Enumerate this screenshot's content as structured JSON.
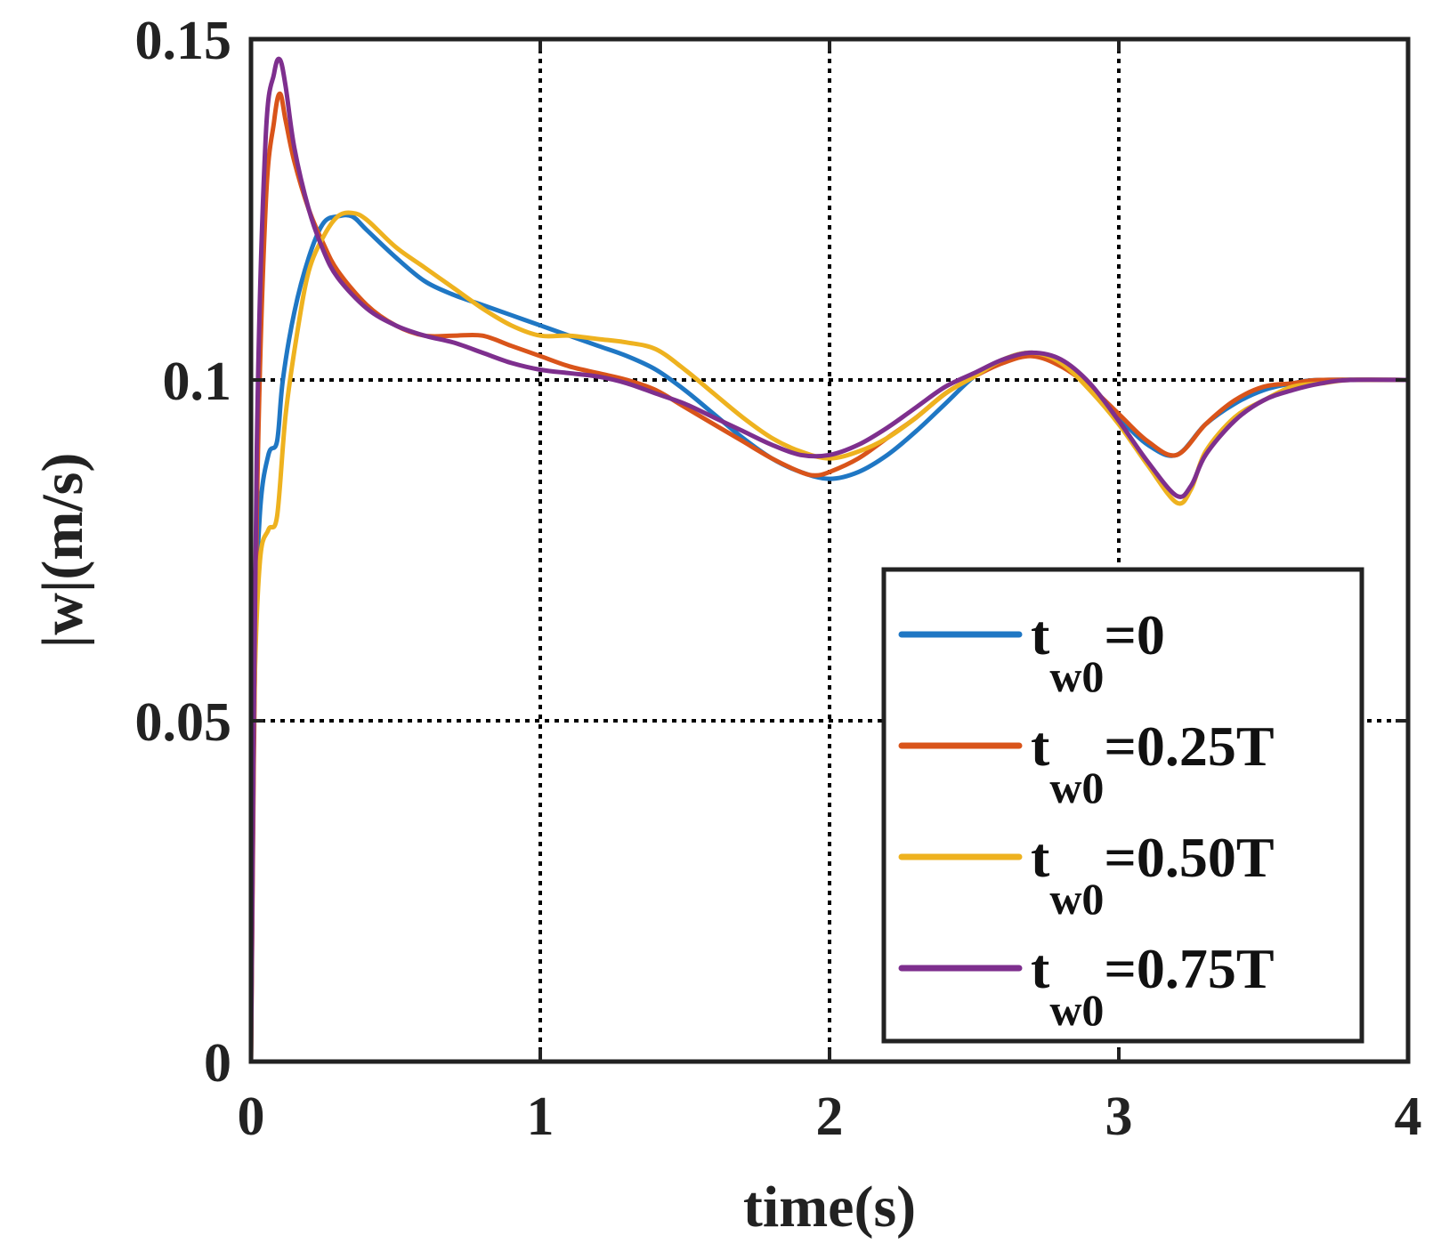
{
  "chart_data": {
    "type": "line",
    "title": "",
    "xlabel": "time(s)",
    "ylabel": "|w|(m/s)",
    "xlim": [
      0,
      4
    ],
    "ylim": [
      0,
      0.15
    ],
    "xticks": [
      0,
      1,
      2,
      3,
      4
    ],
    "xtick_labels": [
      "0",
      "1",
      "2",
      "3",
      "4"
    ],
    "yticks": [
      0,
      0.05,
      0.1,
      0.15
    ],
    "ytick_labels": [
      "0",
      "0.05",
      "0.1",
      "0.15"
    ],
    "grid": true,
    "legend_position": "bottom-right",
    "series": [
      {
        "name": "t_w0=0",
        "legend_main": "t",
        "legend_sub": "w0",
        "legend_suffix": "=0",
        "color": "#1f77c4",
        "points": [
          [
            0,
            0
          ],
          [
            0.01,
            0.055
          ],
          [
            0.03,
            0.08
          ],
          [
            0.06,
            0.089
          ],
          [
            0.09,
            0.091
          ],
          [
            0.11,
            0.1
          ],
          [
            0.15,
            0.11
          ],
          [
            0.2,
            0.118
          ],
          [
            0.25,
            0.123
          ],
          [
            0.3,
            0.124
          ],
          [
            0.35,
            0.124
          ],
          [
            0.4,
            0.122
          ],
          [
            0.5,
            0.118
          ],
          [
            0.6,
            0.1145
          ],
          [
            0.7,
            0.1125
          ],
          [
            0.8,
            0.111
          ],
          [
            0.9,
            0.1095
          ],
          [
            1.0,
            0.108
          ],
          [
            1.1,
            0.1065
          ],
          [
            1.2,
            0.105
          ],
          [
            1.3,
            0.1035
          ],
          [
            1.4,
            0.1015
          ],
          [
            1.5,
            0.0985
          ],
          [
            1.6,
            0.095
          ],
          [
            1.7,
            0.0915
          ],
          [
            1.8,
            0.0885
          ],
          [
            1.9,
            0.0865
          ],
          [
            2.0,
            0.0855
          ],
          [
            2.1,
            0.0865
          ],
          [
            2.2,
            0.089
          ],
          [
            2.3,
            0.0925
          ],
          [
            2.4,
            0.0965
          ],
          [
            2.5,
            0.1005
          ],
          [
            2.6,
            0.103
          ],
          [
            2.7,
            0.104
          ],
          [
            2.8,
            0.1025
          ],
          [
            2.9,
            0.099
          ],
          [
            3.0,
            0.0945
          ],
          [
            3.1,
            0.0905
          ],
          [
            3.2,
            0.089
          ],
          [
            3.3,
            0.0935
          ],
          [
            3.4,
            0.0965
          ],
          [
            3.5,
            0.0985
          ],
          [
            3.6,
            0.0995
          ],
          [
            3.7,
            0.1
          ],
          [
            4.0,
            0.1
          ]
        ]
      },
      {
        "name": "t_w0=0.25T",
        "legend_main": "t",
        "legend_sub": "w0",
        "legend_suffix": "=0.25T",
        "color": "#d9541a",
        "points": [
          [
            0,
            0
          ],
          [
            0.02,
            0.08
          ],
          [
            0.05,
            0.125
          ],
          [
            0.08,
            0.138
          ],
          [
            0.1,
            0.142
          ],
          [
            0.12,
            0.138
          ],
          [
            0.15,
            0.132
          ],
          [
            0.2,
            0.125
          ],
          [
            0.25,
            0.12
          ],
          [
            0.3,
            0.116
          ],
          [
            0.4,
            0.111
          ],
          [
            0.5,
            0.108
          ],
          [
            0.6,
            0.1065
          ],
          [
            0.7,
            0.1065
          ],
          [
            0.8,
            0.1065
          ],
          [
            0.9,
            0.105
          ],
          [
            1.0,
            0.1035
          ],
          [
            1.1,
            0.102
          ],
          [
            1.2,
            0.101
          ],
          [
            1.3,
            0.1
          ],
          [
            1.4,
            0.0985
          ],
          [
            1.5,
            0.096
          ],
          [
            1.6,
            0.0935
          ],
          [
            1.7,
            0.091
          ],
          [
            1.8,
            0.0885
          ],
          [
            1.9,
            0.0865
          ],
          [
            1.95,
            0.086
          ],
          [
            2.0,
            0.0865
          ],
          [
            2.1,
            0.0885
          ],
          [
            2.2,
            0.0915
          ],
          [
            2.3,
            0.0945
          ],
          [
            2.4,
            0.098
          ],
          [
            2.5,
            0.1005
          ],
          [
            2.6,
            0.1025
          ],
          [
            2.7,
            0.1035
          ],
          [
            2.8,
            0.102
          ],
          [
            2.9,
            0.099
          ],
          [
            3.0,
            0.095
          ],
          [
            3.1,
            0.091
          ],
          [
            3.2,
            0.089
          ],
          [
            3.3,
            0.0935
          ],
          [
            3.4,
            0.097
          ],
          [
            3.5,
            0.099
          ],
          [
            3.6,
            0.0995
          ],
          [
            3.7,
            0.1
          ],
          [
            4.0,
            0.1
          ]
        ]
      },
      {
        "name": "t_w0=0.50T",
        "legend_main": "t",
        "legend_sub": "w0",
        "legend_suffix": "=0.50T",
        "color": "#eeb21f",
        "points": [
          [
            0,
            0
          ],
          [
            0.01,
            0.05
          ],
          [
            0.03,
            0.073
          ],
          [
            0.06,
            0.078
          ],
          [
            0.09,
            0.08
          ],
          [
            0.12,
            0.095
          ],
          [
            0.16,
            0.107
          ],
          [
            0.2,
            0.116
          ],
          [
            0.25,
            0.121
          ],
          [
            0.3,
            0.124
          ],
          [
            0.35,
            0.1245
          ],
          [
            0.4,
            0.1235
          ],
          [
            0.5,
            0.1195
          ],
          [
            0.6,
            0.1165
          ],
          [
            0.7,
            0.1135
          ],
          [
            0.8,
            0.1105
          ],
          [
            0.9,
            0.108
          ],
          [
            1.0,
            0.1065
          ],
          [
            1.1,
            0.1065
          ],
          [
            1.2,
            0.106
          ],
          [
            1.3,
            0.1055
          ],
          [
            1.4,
            0.1045
          ],
          [
            1.5,
            0.1015
          ],
          [
            1.6,
            0.098
          ],
          [
            1.7,
            0.0945
          ],
          [
            1.8,
            0.0915
          ],
          [
            1.9,
            0.0895
          ],
          [
            2.0,
            0.0885
          ],
          [
            2.1,
            0.0895
          ],
          [
            2.2,
            0.0915
          ],
          [
            2.3,
            0.0945
          ],
          [
            2.4,
            0.098
          ],
          [
            2.5,
            0.1005
          ],
          [
            2.6,
            0.103
          ],
          [
            2.7,
            0.104
          ],
          [
            2.8,
            0.1025
          ],
          [
            2.9,
            0.0985
          ],
          [
            3.0,
            0.0935
          ],
          [
            3.1,
            0.0875
          ],
          [
            3.2,
            0.082
          ],
          [
            3.25,
            0.084
          ],
          [
            3.3,
            0.0895
          ],
          [
            3.4,
            0.0945
          ],
          [
            3.5,
            0.097
          ],
          [
            3.6,
            0.099
          ],
          [
            3.7,
            0.0995
          ],
          [
            3.8,
            0.1
          ],
          [
            4.0,
            0.1
          ]
        ]
      },
      {
        "name": "t_w0=0.75T",
        "legend_main": "t",
        "legend_sub": "w0",
        "legend_suffix": "=0.75T",
        "color": "#7e2f8e",
        "points": [
          [
            0,
            0
          ],
          [
            0.02,
            0.09
          ],
          [
            0.05,
            0.135
          ],
          [
            0.08,
            0.145
          ],
          [
            0.1,
            0.147
          ],
          [
            0.12,
            0.143
          ],
          [
            0.15,
            0.134
          ],
          [
            0.2,
            0.125
          ],
          [
            0.25,
            0.119
          ],
          [
            0.3,
            0.115
          ],
          [
            0.4,
            0.1105
          ],
          [
            0.5,
            0.108
          ],
          [
            0.6,
            0.1065
          ],
          [
            0.7,
            0.1055
          ],
          [
            0.8,
            0.104
          ],
          [
            0.9,
            0.1025
          ],
          [
            1.0,
            0.1015
          ],
          [
            1.1,
            0.101
          ],
          [
            1.2,
            0.1005
          ],
          [
            1.3,
            0.0995
          ],
          [
            1.4,
            0.098
          ],
          [
            1.5,
            0.0965
          ],
          [
            1.6,
            0.0945
          ],
          [
            1.7,
            0.0925
          ],
          [
            1.8,
            0.0905
          ],
          [
            1.9,
            0.089
          ],
          [
            2.0,
            0.089
          ],
          [
            2.1,
            0.0905
          ],
          [
            2.2,
            0.093
          ],
          [
            2.3,
            0.096
          ],
          [
            2.4,
            0.099
          ],
          [
            2.5,
            0.101
          ],
          [
            2.6,
            0.103
          ],
          [
            2.7,
            0.104
          ],
          [
            2.8,
            0.103
          ],
          [
            2.9,
            0.0995
          ],
          [
            3.0,
            0.094
          ],
          [
            3.1,
            0.088
          ],
          [
            3.2,
            0.083
          ],
          [
            3.25,
            0.0845
          ],
          [
            3.3,
            0.089
          ],
          [
            3.4,
            0.094
          ],
          [
            3.5,
            0.097
          ],
          [
            3.6,
            0.0985
          ],
          [
            3.7,
            0.0995
          ],
          [
            3.8,
            0.1
          ],
          [
            4.0,
            0.1
          ]
        ]
      }
    ]
  }
}
